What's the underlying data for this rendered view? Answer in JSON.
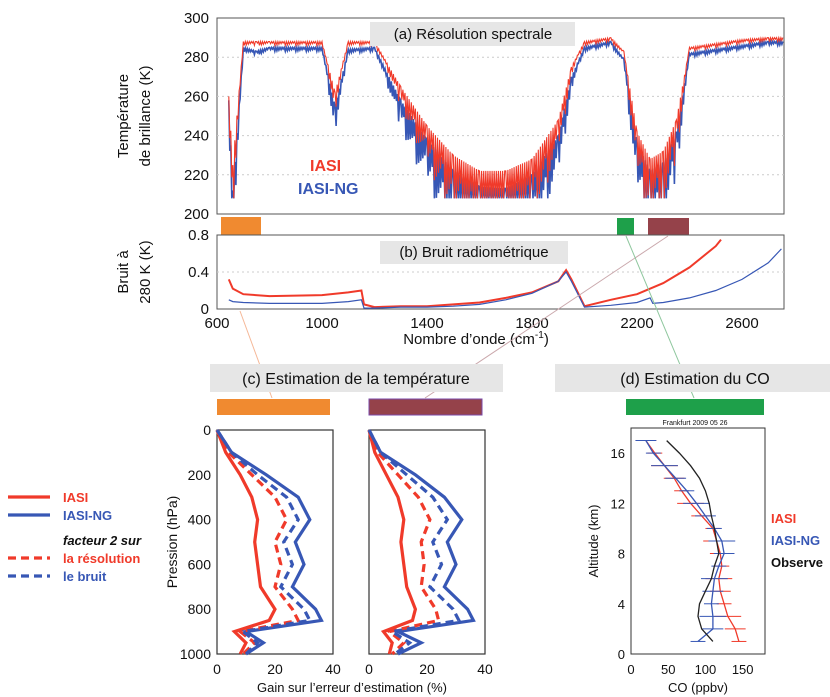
{
  "colors": {
    "iasi": "#f03a2a",
    "iasi_ng": "#3757b5",
    "observed": "#222222",
    "band_orange": "#f08a30",
    "band_green": "#1ea04a",
    "band_brown": "#95424a",
    "title_box": "#e6e6e6"
  },
  "panel_a": {
    "title": "(a) Résolution spectrale",
    "ylabel_line1": "Température",
    "ylabel_line2": "de brillance (K)",
    "inset_iasi": "IASI",
    "inset_iasi_ng": "IASI-NG"
  },
  "panel_b": {
    "title": "(b) Bruit radiométrique",
    "ylabel_line1": "Bruit à",
    "ylabel_line2": "280 K (K)",
    "xlabel_main": "Nombre d’onde (cm",
    "xlabel_sup": "-1",
    "xlabel_end": ")"
  },
  "panel_c": {
    "title": "(c) Estimation de la température",
    "ylabel": "Pression (hPa)",
    "xlabel": "Gain sur l’erreur d’estimation (%)"
  },
  "panel_d": {
    "title": "(d) Estimation du CO",
    "subtitle": "Frankfurt 2009 05 26",
    "ylabel": "Altitude (km)",
    "xlabel": "CO (ppbv)",
    "legend_iasi": "IASI",
    "legend_iasi_ng": "IASI-NG",
    "legend_observed": "Observe"
  },
  "legend_c": {
    "iasi": "IASI",
    "iasi_ng": "IASI-NG",
    "factor": "facteur 2 sur",
    "resolution": "la résolution",
    "noise": "le bruit"
  },
  "chart_data": [
    {
      "type": "line",
      "panel": "a",
      "title": "(a) Résolution spectrale",
      "xlabel": "",
      "ylabel": "Température de brillance (K)",
      "xlim": [
        600,
        2760
      ],
      "ylim": [
        200,
        300
      ],
      "yticks": [
        200,
        220,
        240,
        260,
        280,
        300
      ],
      "series": [
        {
          "name": "IASI",
          "x": [
            645,
            660,
            700,
            750,
            800,
            1000,
            1050,
            1100,
            1200,
            1300,
            1400,
            1500,
            1600,
            1700,
            1800,
            1900,
            1950,
            2000,
            2100,
            2150,
            2200,
            2250,
            2300,
            2350,
            2400,
            2600,
            2700,
            2760
          ],
          "y": [
            260,
            225,
            288,
            288,
            288,
            288,
            262,
            288,
            288,
            265,
            245,
            230,
            222,
            222,
            228,
            248,
            275,
            288,
            290,
            283,
            242,
            228,
            232,
            248,
            285,
            289,
            290,
            290
          ]
        },
        {
          "name": "IASI-NG",
          "x": [
            645,
            660,
            700,
            750,
            800,
            1000,
            1050,
            1100,
            1200,
            1300,
            1400,
            1500,
            1600,
            1700,
            1800,
            1900,
            1950,
            2000,
            2100,
            2150,
            2200,
            2250,
            2300,
            2350,
            2400,
            2600,
            2700,
            2760
          ],
          "y": [
            258,
            212,
            285,
            283,
            285,
            285,
            255,
            284,
            285,
            258,
            238,
            222,
            214,
            213,
            220,
            240,
            270,
            285,
            288,
            279,
            236,
            222,
            226,
            242,
            282,
            286,
            288,
            288
          ]
        }
      ],
      "bands": [
        {
          "color": "orange",
          "x": [
            650,
            770
          ]
        },
        {
          "color": "green",
          "x": [
            2140,
            2190
          ]
        },
        {
          "color": "brown",
          "x": [
            2240,
            2380
          ]
        }
      ]
    },
    {
      "type": "line",
      "panel": "b",
      "title": "(b) Bruit radiométrique",
      "xlabel": "Nombre d’onde (cm-1)",
      "ylabel": "Bruit à 280 K (K)",
      "xlim": [
        600,
        2760
      ],
      "ylim": [
        0,
        0.8
      ],
      "xticks": [
        600,
        1000,
        1400,
        1800,
        2200,
        2600
      ],
      "yticks": [
        0,
        0.4,
        0.8
      ],
      "series": [
        {
          "name": "IASI",
          "x": [
            645,
            660,
            700,
            800,
            1000,
            1100,
            1150,
            1160,
            1200,
            1300,
            1400,
            1500,
            1600,
            1700,
            1800,
            1900,
            1930,
            1950,
            2000,
            2100,
            2200,
            2300,
            2400,
            2500,
            2520
          ],
          "y": [
            0.32,
            0.22,
            0.16,
            0.14,
            0.15,
            0.18,
            0.2,
            0.05,
            0.02,
            0.03,
            0.03,
            0.05,
            0.07,
            0.12,
            0.18,
            0.3,
            0.42,
            0.32,
            0.03,
            0.1,
            0.16,
            0.28,
            0.45,
            0.68,
            0.75
          ]
        },
        {
          "name": "IASI-NG",
          "x": [
            645,
            660,
            700,
            800,
            1000,
            1100,
            1150,
            1160,
            1200,
            1300,
            1400,
            1500,
            1600,
            1700,
            1800,
            1900,
            1930,
            1950,
            2000,
            2100,
            2200,
            2250,
            2260,
            2300,
            2400,
            2500,
            2600,
            2700,
            2750
          ],
          "y": [
            0.1,
            0.08,
            0.07,
            0.06,
            0.06,
            0.08,
            0.1,
            0.01,
            0.01,
            0.02,
            0.02,
            0.03,
            0.05,
            0.1,
            0.17,
            0.3,
            0.4,
            0.3,
            0.02,
            0.04,
            0.07,
            0.12,
            0.06,
            0.07,
            0.12,
            0.2,
            0.32,
            0.5,
            0.65
          ]
        }
      ]
    },
    {
      "type": "line",
      "panel": "c-left",
      "title": "(c) Estimation de la température",
      "xlabel": "Gain sur l’erreur d’estimation (%)",
      "ylabel": "Pression (hPa)",
      "xlim": [
        0,
        40
      ],
      "ylim": [
        1000,
        0
      ],
      "xticks": [
        0,
        20,
        40
      ],
      "yticks": [
        0,
        200,
        400,
        600,
        800,
        1000
      ],
      "series": [
        {
          "name": "IASI",
          "pressure": [
            0,
            100,
            200,
            300,
            400,
            500,
            600,
            700,
            800,
            850,
            900,
            950,
            1000
          ],
          "gain": [
            0,
            3,
            8,
            12,
            14,
            13,
            14,
            15,
            20,
            18,
            6,
            10,
            8
          ]
        },
        {
          "name": "IASI-NG",
          "pressure": [
            0,
            100,
            200,
            300,
            400,
            500,
            600,
            700,
            800,
            850,
            900,
            950,
            1000
          ],
          "gain": [
            0,
            5,
            17,
            28,
            32,
            27,
            30,
            26,
            34,
            36,
            10,
            16,
            10
          ]
        },
        {
          "name": "facteur 2 sur la résolution",
          "pressure": [
            0,
            100,
            200,
            300,
            400,
            500,
            600,
            700,
            800,
            850,
            900,
            950,
            1000
          ],
          "gain": [
            0,
            4,
            12,
            20,
            24,
            20,
            22,
            20,
            26,
            28,
            8,
            13,
            9
          ]
        },
        {
          "name": "facteur 2 sur le bruit",
          "pressure": [
            0,
            100,
            200,
            300,
            400,
            500,
            600,
            700,
            800,
            850,
            900,
            950,
            1000
          ],
          "gain": [
            0,
            5,
            14,
            24,
            28,
            23,
            26,
            22,
            30,
            32,
            9,
            14,
            10
          ]
        }
      ]
    },
    {
      "type": "line",
      "panel": "c-right",
      "xlim": [
        0,
        40
      ],
      "ylim": [
        1000,
        0
      ],
      "xticks": [
        0,
        20,
        40
      ],
      "series": [
        {
          "name": "IASI",
          "pressure": [
            0,
            100,
            200,
            300,
            400,
            500,
            600,
            700,
            800,
            850,
            900,
            950,
            1000
          ],
          "gain": [
            0,
            2,
            6,
            10,
            12,
            11,
            12,
            13,
            16,
            15,
            5,
            8,
            7
          ]
        },
        {
          "name": "IASI-NG",
          "pressure": [
            0,
            100,
            200,
            300,
            400,
            500,
            600,
            700,
            800,
            850,
            900,
            950,
            1000
          ],
          "gain": [
            0,
            4,
            16,
            26,
            32,
            27,
            30,
            26,
            34,
            36,
            10,
            18,
            10
          ]
        },
        {
          "name": "facteur 2 sur la résolution",
          "pressure": [
            0,
            100,
            200,
            300,
            400,
            500,
            600,
            700,
            800,
            850,
            900,
            950,
            1000
          ],
          "gain": [
            0,
            3,
            10,
            17,
            21,
            18,
            19,
            18,
            23,
            24,
            7,
            12,
            8
          ]
        },
        {
          "name": "facteur 2 sur le bruit",
          "pressure": [
            0,
            100,
            200,
            300,
            400,
            500,
            600,
            700,
            800,
            850,
            900,
            950,
            1000
          ],
          "gain": [
            0,
            4,
            13,
            22,
            27,
            22,
            25,
            21,
            29,
            31,
            8,
            14,
            9
          ]
        }
      ]
    },
    {
      "type": "line",
      "panel": "d",
      "title": "(d) Estimation du CO",
      "subtitle": "Frankfurt 2009 05 26",
      "xlabel": "CO (ppbv)",
      "ylabel": "Altitude (km)",
      "xlim": [
        0,
        180
      ],
      "ylim": [
        0,
        18
      ],
      "xticks": [
        0,
        50,
        100,
        150
      ],
      "yticks": [
        0,
        4,
        8,
        12,
        16
      ],
      "series": [
        {
          "name": "IASI",
          "altitude": [
            1,
            2,
            3,
            4,
            5,
            6,
            7,
            8,
            9,
            10,
            11,
            12,
            13,
            14,
            15,
            16,
            17
          ],
          "co": [
            145,
            140,
            130,
            125,
            120,
            118,
            122,
            120,
            115,
            110,
            95,
            80,
            68,
            58,
            45,
            32,
            20
          ]
        },
        {
          "name": "IASI-NG",
          "altitude": [
            1,
            2,
            3,
            4,
            5,
            6,
            7,
            8,
            9,
            10,
            11,
            12,
            13,
            14,
            15,
            16,
            17
          ],
          "co": [
            90,
            110,
            110,
            108,
            110,
            112,
            118,
            125,
            122,
            112,
            100,
            88,
            75,
            60,
            45,
            30,
            20
          ]
        },
        {
          "name": "Observe",
          "altitude": [
            1,
            2,
            3,
            4,
            5,
            6,
            7,
            8,
            9,
            10,
            11,
            12,
            13,
            14,
            15,
            16,
            17
          ],
          "co": [
            110,
            95,
            90,
            92,
            100,
            108,
            112,
            118,
            115,
            112,
            108,
            105,
            100,
            92,
            80,
            65,
            48
          ]
        }
      ]
    }
  ]
}
